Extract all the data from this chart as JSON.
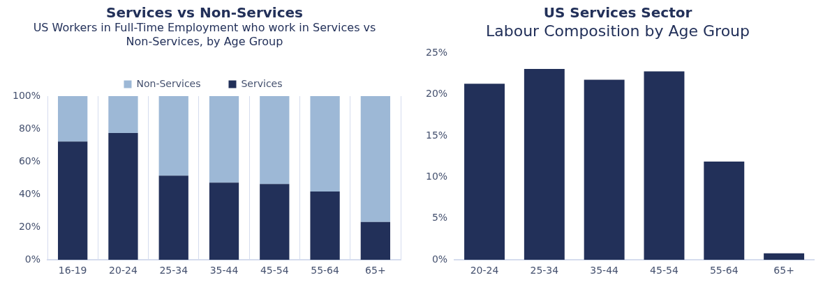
{
  "chart_data": [
    {
      "type": "bar",
      "title": "Services vs Non-Services",
      "subtitle": "US Workers in Full-Time Employment who work in Services vs Non-Services, by Age Group",
      "categories": [
        "16-19",
        "20-24",
        "25-34",
        "35-44",
        "45-54",
        "55-64",
        "65+"
      ],
      "series": [
        {
          "name": "Services",
          "color": "#223059",
          "values": [
            72.3,
            77.5,
            51.4,
            47.2,
            46.3,
            41.8,
            23.2
          ]
        },
        {
          "name": "Non-Services",
          "color": "#9db8d6",
          "values": [
            27.7,
            22.5,
            48.6,
            52.8,
            53.7,
            58.2,
            76.8
          ]
        }
      ],
      "stacked": true,
      "ylim": [
        0,
        100
      ],
      "yticks": [
        {
          "value": 0,
          "label": "0%"
        },
        {
          "value": 20,
          "label": "20%"
        },
        {
          "value": 40,
          "label": "40%"
        },
        {
          "value": 60,
          "label": "60%"
        },
        {
          "value": 80,
          "label": "80%"
        },
        {
          "value": 100,
          "label": "100%"
        }
      ],
      "grid": "x",
      "legend": "top"
    },
    {
      "type": "bar",
      "title": "US Services Sector",
      "subtitle": "Labour Composition by Age Group",
      "categories": [
        "20-24",
        "25-34",
        "35-44",
        "45-54",
        "55-64",
        "65+"
      ],
      "values": [
        21.3,
        23.1,
        21.8,
        22.8,
        11.9,
        0.8
      ],
      "color": "#223059",
      "ylim": [
        0,
        25
      ],
      "yticks": [
        {
          "value": 0,
          "label": "0%"
        },
        {
          "value": 5,
          "label": "5%"
        },
        {
          "value": 10,
          "label": "10%"
        },
        {
          "value": 15,
          "label": "15%"
        },
        {
          "value": 20,
          "label": "20%"
        },
        {
          "value": 25,
          "label": "25%"
        }
      ]
    }
  ]
}
